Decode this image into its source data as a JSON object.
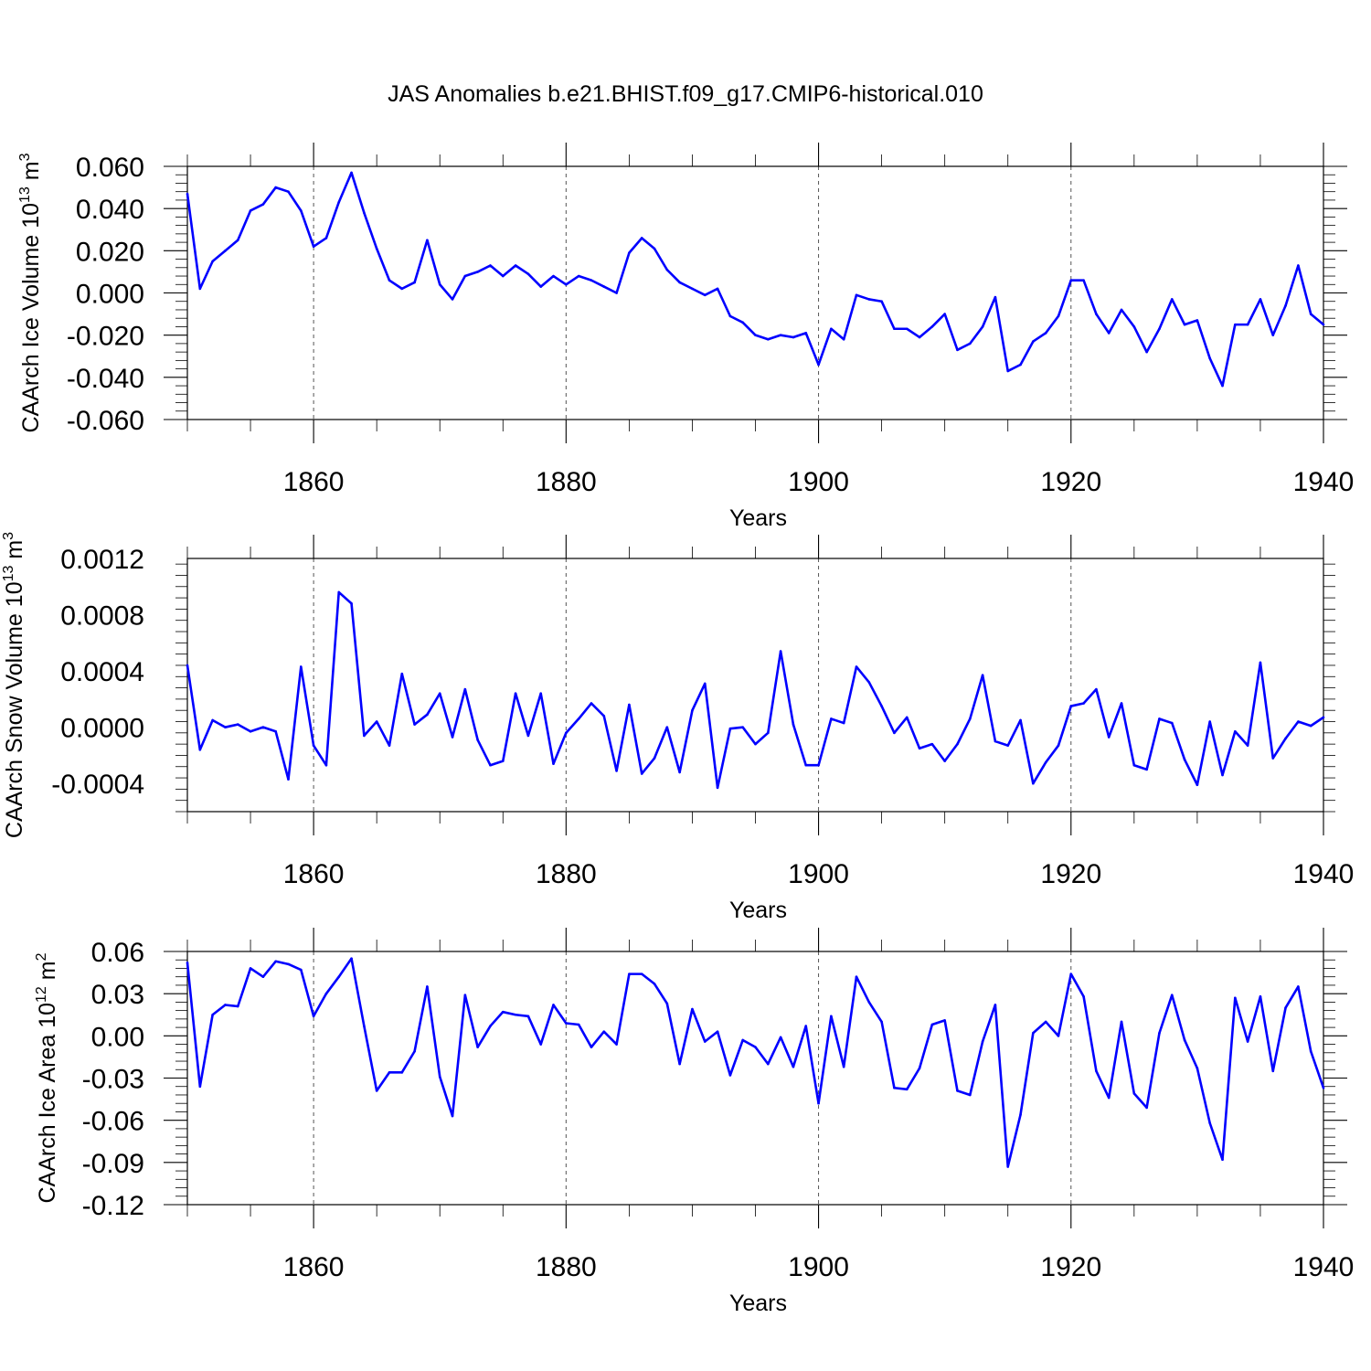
{
  "title": "JAS Anomalies b.e21.BHIST.f09_g17.CMIP6-historical.010",
  "colors": {
    "line": "#0000ff",
    "axis": "#000000",
    "grid": "#555555"
  },
  "chart_data": [
    {
      "type": "line",
      "ylabel": "CAArch Ice Volume 10",
      "ylabel_exponent": "13",
      "ylabel_unit": " m",
      "ylabel_unit_exponent": "3",
      "xlabel": "Years",
      "xlim": [
        1850,
        1940
      ],
      "ylim": [
        -0.06,
        0.06
      ],
      "yticks": [
        0.06,
        0.04,
        0.02,
        0.0,
        -0.02,
        -0.04,
        -0.06
      ],
      "ytick_labels": [
        "0.060",
        "0.040",
        "0.020",
        "0.000",
        "-0.020",
        "-0.040",
        "-0.060"
      ],
      "xticks": [
        1860,
        1880,
        1900,
        1920,
        1940
      ],
      "xtick_labels": [
        "1860",
        "1880",
        "1900",
        "1920",
        "1940"
      ],
      "grid": "dashed vertical at major x ticks",
      "series": [
        {
          "x_start": 1850,
          "x_step": 1,
          "values": [
            0.047,
            0.002,
            0.015,
            0.02,
            0.025,
            0.039,
            0.042,
            0.05,
            0.048,
            0.039,
            0.022,
            0.026,
            0.043,
            0.057,
            0.038,
            0.021,
            0.006,
            0.002,
            0.005,
            0.025,
            0.004,
            -0.003,
            0.008,
            0.01,
            0.013,
            0.008,
            0.013,
            0.009,
            0.003,
            0.008,
            0.004,
            0.008,
            0.006,
            0.003,
            0.0,
            0.019,
            0.026,
            0.021,
            0.011,
            0.005,
            0.002,
            -0.001,
            0.002,
            -0.011,
            -0.014,
            -0.02,
            -0.022,
            -0.02,
            -0.021,
            -0.019,
            -0.034,
            -0.017,
            -0.022,
            -0.001,
            -0.003,
            -0.004,
            -0.017,
            -0.017,
            -0.021,
            -0.016,
            -0.01,
            -0.027,
            -0.024,
            -0.016,
            -0.002,
            -0.037,
            -0.034,
            -0.023,
            -0.019,
            -0.011,
            0.006,
            0.006,
            -0.01,
            -0.019,
            -0.008,
            -0.016,
            -0.028,
            -0.017,
            -0.003,
            -0.015,
            -0.013,
            -0.031,
            -0.044,
            -0.015,
            -0.015,
            -0.003,
            -0.02,
            -0.006,
            0.013,
            -0.01,
            -0.015
          ]
        }
      ]
    },
    {
      "type": "line",
      "ylabel": "CAArch Snow Volume 10",
      "ylabel_exponent": "13",
      "ylabel_unit": " m",
      "ylabel_unit_exponent": "3",
      "xlabel": "Years",
      "xlim": [
        1850,
        1940
      ],
      "ylim": [
        -0.0006,
        0.0012
      ],
      "yticks": [
        0.0012,
        0.0008,
        0.0004,
        0.0,
        -0.0004
      ],
      "ytick_labels": [
        "0.0012",
        "0.0008",
        "0.0004",
        "0.0000",
        "-0.0004"
      ],
      "xticks": [
        1860,
        1880,
        1900,
        1920,
        1940
      ],
      "xtick_labels": [
        "1860",
        "1880",
        "1900",
        "1920",
        "1940"
      ],
      "grid": "dashed vertical at major x ticks",
      "series": [
        {
          "x_start": 1850,
          "x_step": 1,
          "values": [
            0.00044,
            -0.00016,
            5e-05,
            0.0,
            2e-05,
            -3e-05,
            0.0,
            -3e-05,
            -0.00037,
            0.00043,
            -0.00013,
            -0.00027,
            0.00096,
            0.00088,
            -6e-05,
            4e-05,
            -0.00013,
            0.00038,
            2e-05,
            9e-05,
            0.00024,
            -7e-05,
            0.00027,
            -9e-05,
            -0.00027,
            -0.00024,
            0.00024,
            -6e-05,
            0.00024,
            -0.00026,
            -4e-05,
            6e-05,
            0.00017,
            8e-05,
            -0.00031,
            0.00016,
            -0.00033,
            -0.00022,
            0.0,
            -0.00032,
            0.00012,
            0.00031,
            -0.00043,
            -1e-05,
            0.0,
            -0.00012,
            -4e-05,
            0.00054,
            2e-05,
            -0.00027,
            -0.00027,
            6e-05,
            3e-05,
            0.00043,
            0.00032,
            0.00015,
            -4e-05,
            7e-05,
            -0.00015,
            -0.00012,
            -0.00024,
            -0.00012,
            6e-05,
            0.00037,
            -0.0001,
            -0.00013,
            5e-05,
            -0.0004,
            -0.00025,
            -0.00013,
            0.00015,
            0.00017,
            0.00027,
            -7e-05,
            0.00017,
            -0.00027,
            -0.0003,
            6e-05,
            3e-05,
            -0.00023,
            -0.00041,
            4e-05,
            -0.00034,
            -3e-05,
            -0.00013,
            0.00046,
            -0.00022,
            -8e-05,
            4e-05,
            1e-05,
            7e-05
          ]
        }
      ]
    },
    {
      "type": "line",
      "ylabel": "CAArch Ice Area 10",
      "ylabel_exponent": "12",
      "ylabel_unit": " m",
      "ylabel_unit_exponent": "2",
      "xlabel": "Years",
      "xlim": [
        1850,
        1940
      ],
      "ylim": [
        -0.12,
        0.06
      ],
      "yticks": [
        0.06,
        0.03,
        0.0,
        -0.03,
        -0.06,
        -0.09,
        -0.12
      ],
      "ytick_labels": [
        "0.06",
        "0.03",
        "0.00",
        "-0.03",
        "-0.06",
        "-0.09",
        "-0.12"
      ],
      "xticks": [
        1860,
        1880,
        1900,
        1920,
        1940
      ],
      "xtick_labels": [
        "1860",
        "1880",
        "1900",
        "1920",
        "1940"
      ],
      "grid": "dashed vertical at major x ticks",
      "series": [
        {
          "x_start": 1850,
          "x_step": 1,
          "values": [
            0.052,
            -0.036,
            0.015,
            0.022,
            0.021,
            0.048,
            0.042,
            0.053,
            0.051,
            0.047,
            0.014,
            0.03,
            0.042,
            0.055,
            0.007,
            -0.039,
            -0.026,
            -0.026,
            -0.011,
            0.035,
            -0.029,
            -0.057,
            0.029,
            -0.008,
            0.007,
            0.017,
            0.015,
            0.014,
            -0.006,
            0.022,
            0.009,
            0.008,
            -0.008,
            0.003,
            -0.006,
            0.044,
            0.044,
            0.037,
            0.023,
            -0.02,
            0.019,
            -0.004,
            0.003,
            -0.028,
            -0.003,
            -0.008,
            -0.02,
            -0.001,
            -0.022,
            0.007,
            -0.048,
            0.014,
            -0.022,
            0.042,
            0.024,
            0.01,
            -0.037,
            -0.038,
            -0.023,
            0.008,
            0.011,
            -0.039,
            -0.042,
            -0.004,
            0.022,
            -0.093,
            -0.056,
            0.002,
            0.01,
            0.0,
            0.044,
            0.028,
            -0.025,
            -0.044,
            0.01,
            -0.041,
            -0.051,
            0.002,
            0.029,
            -0.003,
            -0.023,
            -0.062,
            -0.088,
            0.027,
            -0.004,
            0.028,
            -0.025,
            0.02,
            0.035,
            -0.011,
            -0.037
          ]
        }
      ]
    }
  ]
}
